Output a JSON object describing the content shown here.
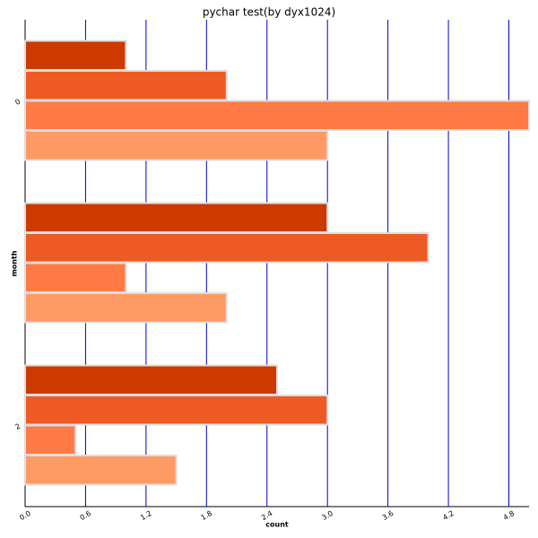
{
  "chart_data": {
    "type": "bar",
    "orientation": "horizontal",
    "title": "pychar test(by dyx1024)",
    "x_label": "count",
    "y_label": "month",
    "categories": [
      "0",
      null,
      "2"
    ],
    "series": [
      {
        "color": "#cc3a00",
        "values": [
          1,
          3,
          2.5
        ]
      },
      {
        "color": "#ee5a24",
        "values": [
          2,
          4,
          3
        ]
      },
      {
        "color": "#ff7a44",
        "values": [
          5,
          1,
          0.5
        ]
      },
      {
        "color": "#ff9a64",
        "values": [
          3,
          2,
          1.5
        ]
      }
    ],
    "xlim": [
      0,
      5
    ],
    "xticks": [
      {
        "value": 0,
        "label": "0.0"
      },
      0.6,
      1.2,
      1.8,
      2.4,
      {
        "value": 3,
        "label": "3.0"
      },
      3.6,
      4.2,
      4.8
    ],
    "grid": true,
    "grid_color": "#0000cc"
  }
}
